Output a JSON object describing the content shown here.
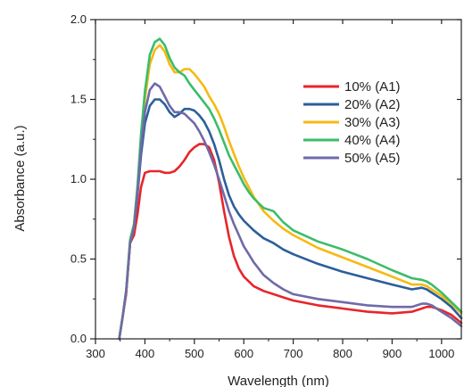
{
  "chart_data": {
    "type": "line",
    "title": "",
    "xlabel": "Wavelength (nm)",
    "ylabel": "Absorbance (a.u.)",
    "xlim": [
      300,
      1040
    ],
    "ylim": [
      0.0,
      2.0
    ],
    "xticks": [
      300,
      400,
      500,
      600,
      700,
      800,
      900,
      1000
    ],
    "yticks": [
      0.0,
      0.5,
      1.0,
      1.5,
      2.0
    ],
    "xtick_labels": [
      "300",
      "400",
      "500",
      "600",
      "700",
      "800",
      "900",
      "1000"
    ],
    "ytick_labels": [
      "0.0",
      "0.5",
      "1.0",
      "1.5",
      "2.0"
    ],
    "grid": false,
    "legend_position": "top-right",
    "series": [
      {
        "name": "10% (A1)",
        "color": "#e8252a",
        "x": [
          348,
          355,
          362,
          370,
          378,
          385,
          392,
          400,
          410,
          420,
          430,
          440,
          450,
          460,
          470,
          480,
          490,
          500,
          510,
          520,
          530,
          540,
          550,
          560,
          570,
          580,
          590,
          600,
          610,
          620,
          640,
          660,
          680,
          700,
          750,
          800,
          850,
          900,
          940,
          960,
          970,
          980,
          1000,
          1020,
          1040
        ],
        "y": [
          0.0,
          0.14,
          0.28,
          0.6,
          0.65,
          0.78,
          0.95,
          1.04,
          1.05,
          1.05,
          1.05,
          1.04,
          1.04,
          1.05,
          1.08,
          1.12,
          1.17,
          1.2,
          1.22,
          1.22,
          1.2,
          1.12,
          0.98,
          0.8,
          0.64,
          0.52,
          0.44,
          0.39,
          0.36,
          0.33,
          0.3,
          0.28,
          0.26,
          0.24,
          0.21,
          0.19,
          0.17,
          0.16,
          0.17,
          0.19,
          0.2,
          0.2,
          0.18,
          0.15,
          0.1
        ]
      },
      {
        "name": "20% (A2)",
        "color": "#2b5f99",
        "x": [
          348,
          355,
          362,
          370,
          378,
          385,
          392,
          400,
          410,
          420,
          430,
          440,
          450,
          460,
          470,
          480,
          490,
          500,
          510,
          520,
          530,
          540,
          550,
          560,
          570,
          580,
          590,
          600,
          610,
          620,
          640,
          660,
          680,
          700,
          750,
          800,
          850,
          900,
          940,
          960,
          970,
          980,
          1000,
          1020,
          1040
        ],
        "y": [
          0.0,
          0.14,
          0.3,
          0.6,
          0.7,
          0.9,
          1.15,
          1.35,
          1.46,
          1.5,
          1.5,
          1.47,
          1.42,
          1.39,
          1.41,
          1.44,
          1.44,
          1.43,
          1.4,
          1.36,
          1.3,
          1.22,
          1.12,
          1.0,
          0.9,
          0.83,
          0.78,
          0.74,
          0.71,
          0.68,
          0.63,
          0.6,
          0.56,
          0.53,
          0.47,
          0.42,
          0.38,
          0.34,
          0.31,
          0.32,
          0.31,
          0.29,
          0.25,
          0.2,
          0.13
        ]
      },
      {
        "name": "30% (A3)",
        "color": "#f7b911",
        "x": [
          348,
          355,
          362,
          370,
          378,
          385,
          392,
          400,
          410,
          420,
          430,
          440,
          450,
          460,
          470,
          480,
          490,
          500,
          510,
          520,
          530,
          540,
          550,
          560,
          570,
          580,
          590,
          600,
          610,
          620,
          640,
          660,
          680,
          700,
          750,
          800,
          850,
          900,
          940,
          960,
          970,
          980,
          1000,
          1020,
          1040
        ],
        "y": [
          0.0,
          0.14,
          0.3,
          0.62,
          0.72,
          0.95,
          1.25,
          1.5,
          1.72,
          1.81,
          1.84,
          1.8,
          1.72,
          1.67,
          1.67,
          1.69,
          1.69,
          1.66,
          1.62,
          1.58,
          1.52,
          1.47,
          1.41,
          1.33,
          1.24,
          1.16,
          1.08,
          1.01,
          0.95,
          0.89,
          0.8,
          0.74,
          0.69,
          0.65,
          0.57,
          0.51,
          0.45,
          0.39,
          0.34,
          0.34,
          0.33,
          0.31,
          0.27,
          0.22,
          0.16
        ]
      },
      {
        "name": "40% (A4)",
        "color": "#3bbd6a",
        "x": [
          348,
          355,
          362,
          370,
          378,
          385,
          392,
          400,
          410,
          420,
          430,
          440,
          450,
          460,
          470,
          480,
          490,
          500,
          510,
          520,
          530,
          540,
          550,
          560,
          570,
          580,
          590,
          600,
          610,
          620,
          640,
          660,
          680,
          700,
          750,
          800,
          850,
          900,
          940,
          960,
          970,
          980,
          1000,
          1020,
          1040
        ],
        "y": [
          0.0,
          0.14,
          0.3,
          0.62,
          0.72,
          0.96,
          1.28,
          1.55,
          1.78,
          1.86,
          1.88,
          1.84,
          1.76,
          1.7,
          1.67,
          1.65,
          1.6,
          1.56,
          1.52,
          1.48,
          1.44,
          1.38,
          1.31,
          1.23,
          1.15,
          1.09,
          1.03,
          0.97,
          0.92,
          0.88,
          0.82,
          0.8,
          0.73,
          0.68,
          0.61,
          0.56,
          0.5,
          0.43,
          0.38,
          0.37,
          0.36,
          0.34,
          0.29,
          0.23,
          0.17
        ]
      },
      {
        "name": "50% (A5)",
        "color": "#6f6aa8",
        "x": [
          348,
          355,
          362,
          370,
          378,
          385,
          392,
          400,
          410,
          420,
          430,
          440,
          450,
          460,
          470,
          480,
          490,
          500,
          510,
          520,
          530,
          540,
          550,
          560,
          570,
          580,
          590,
          600,
          610,
          620,
          640,
          660,
          680,
          700,
          750,
          800,
          850,
          900,
          940,
          960,
          970,
          980,
          1000,
          1020,
          1040
        ],
        "y": [
          0.0,
          0.14,
          0.3,
          0.6,
          0.7,
          0.92,
          1.2,
          1.42,
          1.56,
          1.6,
          1.58,
          1.52,
          1.46,
          1.42,
          1.42,
          1.41,
          1.38,
          1.35,
          1.3,
          1.24,
          1.17,
          1.09,
          1.0,
          0.9,
          0.8,
          0.72,
          0.65,
          0.58,
          0.53,
          0.48,
          0.4,
          0.35,
          0.31,
          0.28,
          0.25,
          0.23,
          0.21,
          0.2,
          0.2,
          0.22,
          0.22,
          0.21,
          0.17,
          0.13,
          0.08
        ]
      }
    ]
  }
}
